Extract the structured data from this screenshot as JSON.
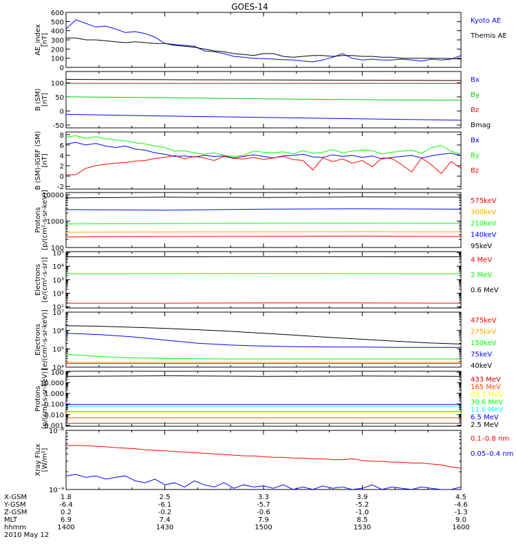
{
  "title": "GOES-14",
  "chart_data": [
    {
      "type": "line",
      "id": "ae",
      "ylabel": [
        "AE_index",
        "[nT]"
      ],
      "ylim": [
        0,
        600
      ],
      "scale": "linear",
      "ticks": [
        0,
        100,
        200,
        300,
        400,
        500,
        600
      ],
      "tick_labels": [
        "0",
        "100",
        "200",
        "300",
        "400",
        "500",
        "600"
      ],
      "x": [
        1400,
        1403,
        1406,
        1409,
        1412,
        1415,
        1418,
        1421,
        1424,
        1427,
        1430,
        1433,
        1436,
        1439,
        1442,
        1445,
        1448,
        1451,
        1454,
        1457,
        1500,
        1503,
        1506,
        1509,
        1512,
        1515,
        1518,
        1521,
        1524,
        1527,
        1530,
        1533,
        1536,
        1539,
        1542,
        1545,
        1548,
        1551,
        1554,
        1557,
        1600
      ],
      "series": [
        {
          "name": "Kyoto AE",
          "color": "#0000ff",
          "values": [
            420,
            520,
            480,
            440,
            450,
            420,
            380,
            390,
            370,
            330,
            260,
            250,
            240,
            230,
            180,
            170,
            150,
            120,
            110,
            100,
            95,
            90,
            85,
            80,
            70,
            60,
            80,
            110,
            150,
            100,
            80,
            90,
            80,
            80,
            90,
            80,
            70,
            90,
            80,
            90,
            130
          ]
        },
        {
          "name": "Themis AE",
          "color": "#000000",
          "values": [
            320,
            320,
            300,
            300,
            290,
            280,
            270,
            280,
            270,
            260,
            260,
            240,
            230,
            220,
            200,
            180,
            170,
            150,
            140,
            130,
            150,
            150,
            120,
            110,
            120,
            130,
            130,
            120,
            130,
            130,
            120,
            120,
            110,
            110,
            100,
            100,
            100,
            100,
            100,
            95,
            90
          ]
        }
      ]
    },
    {
      "type": "line",
      "id": "bsm",
      "ylabel": [
        "B (SM)",
        "[nT]"
      ],
      "ylim": [
        -60,
        140
      ],
      "scale": "linear",
      "ticks": [
        -50,
        0,
        50,
        100
      ],
      "tick_labels": [
        "-50",
        "0",
        "50",
        "100"
      ],
      "x": [
        1400,
        1430,
        1500,
        1530,
        1600
      ],
      "series": [
        {
          "name": "Bx",
          "color": "#0000ff",
          "values": [
            -12,
            -18,
            -23,
            -28,
            -33
          ]
        },
        {
          "name": "By",
          "color": "#00cc00",
          "values": [
            50,
            47,
            43,
            40,
            38
          ]
        },
        {
          "name": "Bz",
          "color": "#ff0000",
          "values": [
            98,
            98,
            98,
            98,
            98
          ]
        },
        {
          "name": "Bmag",
          "color": "#000000",
          "values": [
            112,
            111,
            110,
            109,
            108
          ]
        }
      ]
    },
    {
      "type": "line",
      "id": "bigrf",
      "ylabel": [
        "B (SM)-IGRF (SM)",
        "[nT]"
      ],
      "ylim": [
        -2.5,
        8.5
      ],
      "scale": "linear",
      "ticks": [
        -2,
        0,
        2,
        4,
        6,
        8
      ],
      "tick_labels": [
        "-2",
        "0",
        "2",
        "4",
        "6",
        "8"
      ],
      "x": [
        1400,
        1403,
        1406,
        1409,
        1412,
        1415,
        1418,
        1421,
        1424,
        1427,
        1430,
        1433,
        1436,
        1439,
        1442,
        1445,
        1448,
        1451,
        1454,
        1457,
        1500,
        1503,
        1506,
        1509,
        1512,
        1515,
        1518,
        1521,
        1524,
        1527,
        1530,
        1533,
        1536,
        1539,
        1542,
        1545,
        1548,
        1551,
        1554,
        1557,
        1600
      ],
      "series": [
        {
          "name": "Bx",
          "color": "#0000ff",
          "values": [
            6.2,
            6.5,
            6.0,
            6.3,
            5.8,
            5.5,
            5.8,
            5.2,
            5.0,
            4.5,
            4.2,
            3.8,
            3.9,
            3.7,
            4.0,
            3.8,
            3.9,
            3.5,
            3.8,
            4.1,
            3.8,
            3.5,
            3.9,
            4.0,
            4.2,
            3.7,
            3.6,
            4.1,
            3.8,
            4.0,
            3.6,
            3.9,
            3.3,
            3.6,
            3.8,
            4.0,
            3.5,
            3.9,
            4.2,
            4.4,
            4.0
          ]
        },
        {
          "name": "By",
          "color": "#00ff00",
          "values": [
            7.5,
            7.8,
            7.3,
            7.6,
            7.2,
            7.0,
            6.8,
            6.4,
            6.2,
            5.8,
            5.5,
            4.8,
            4.9,
            4.5,
            4.2,
            4.5,
            4.0,
            3.8,
            4.0,
            4.8,
            4.6,
            4.5,
            4.7,
            4.3,
            4.9,
            4.4,
            4.6,
            5.1,
            4.5,
            4.8,
            5.0,
            4.9,
            4.3,
            4.6,
            4.8,
            5.0,
            4.4,
            5.5,
            5.9,
            4.8,
            4.2
          ]
        },
        {
          "name": "Bz",
          "color": "#ff0000",
          "values": [
            0.2,
            0.3,
            1.5,
            2.0,
            2.3,
            2.5,
            2.6,
            2.9,
            3.0,
            3.4,
            3.6,
            4.0,
            3.3,
            3.8,
            3.5,
            3.0,
            3.8,
            3.4,
            3.3,
            3.6,
            3.2,
            3.5,
            3.8,
            3.2,
            3.0,
            1.2,
            3.5,
            2.8,
            3.3,
            2.5,
            3.0,
            1.8,
            3.5,
            3.4,
            2.2,
            0.8,
            3.5,
            2.2,
            0.5,
            2.8,
            1.5
          ]
        }
      ]
    },
    {
      "type": "line",
      "id": "protons1",
      "ylabel": [
        "Protons",
        "[p/(cm²-s-sr-keV)]"
      ],
      "ylim": [
        100,
        12000
      ],
      "scale": "log",
      "ticks": [
        100,
        1000,
        10000
      ],
      "tick_labels": [
        "100",
        "1000",
        "10000"
      ],
      "x": [
        1400,
        1430,
        1500,
        1530,
        1600
      ],
      "series": [
        {
          "name": "575keV",
          "color": "#ff0000",
          "values": [
            250,
            260,
            265,
            270,
            260
          ]
        },
        {
          "name": "300keV",
          "color": "#ffaa00",
          "values": [
            380,
            390,
            395,
            400,
            390
          ]
        },
        {
          "name": "210keV",
          "color": "#00ff00",
          "values": [
            780,
            800,
            820,
            830,
            810
          ]
        },
        {
          "name": "140keV",
          "color": "#0000ff",
          "values": [
            2700,
            2600,
            2800,
            2900,
            2800
          ]
        },
        {
          "name": "95keV",
          "color": "#000000",
          "values": [
            7500,
            8000,
            7800,
            8200,
            8000
          ]
        }
      ]
    },
    {
      "type": "line",
      "id": "electrons1",
      "ylabel": [
        "Electrons",
        "[e/(cm²-s-sr)]"
      ],
      "ylim": [
        8,
        120000
      ],
      "scale": "log",
      "ticks": [
        10,
        100,
        1000,
        10000,
        100000
      ],
      "tick_labels": [
        "10¹",
        "10²",
        "10³",
        "10⁴",
        "10⁵"
      ],
      "x": [
        1400,
        1430,
        1500,
        1530,
        1600
      ],
      "series": [
        {
          "name": "4 MeV",
          "color": "#ff0000",
          "values": [
            18,
            18,
            19,
            19,
            18
          ]
        },
        {
          "name": "2 MeV",
          "color": "#00ff00",
          "values": [
            2800,
            2850,
            2900,
            2850,
            2800
          ]
        },
        {
          "name": "0.6 MeV",
          "color": "#000000",
          "values": [
            50000,
            50000,
            51000,
            50500,
            50000
          ]
        }
      ]
    },
    {
      "type": "line",
      "id": "electrons2",
      "ylabel": [
        "Electrons",
        "[e/(cm²-s-sr-keV)]"
      ],
      "ylim": [
        10000,
        10000000
      ],
      "scale": "log",
      "ticks": [
        10000,
        100000,
        1000000,
        10000000
      ],
      "tick_labels": [
        "10⁴",
        "10⁵",
        "10⁶",
        "10⁷"
      ],
      "x": [
        1400,
        1410,
        1420,
        1430,
        1440,
        1450,
        1500,
        1510,
        1520,
        1530,
        1540,
        1550,
        1600
      ],
      "series": [
        {
          "name": "475keV",
          "color": "#ff0000",
          "values": [
            16000,
            16000,
            16000,
            16000,
            16000,
            16000,
            16000,
            16000,
            16000,
            16000,
            16000,
            16000,
            16000
          ]
        },
        {
          "name": "275keV",
          "color": "#ffaa00",
          "values": [
            18500,
            18500,
            18500,
            18500,
            18500,
            18500,
            18500,
            18500,
            18500,
            18500,
            18500,
            18500,
            18500
          ]
        },
        {
          "name": "150keV",
          "color": "#00ff00",
          "values": [
            50000,
            38000,
            32000,
            30000,
            29000,
            28000,
            28000,
            28000,
            28000,
            28000,
            28000,
            28000,
            28000
          ]
        },
        {
          "name": "75keV",
          "color": "#0000ff",
          "values": [
            700000,
            600000,
            450000,
            300000,
            200000,
            160000,
            140000,
            130000,
            125000,
            125000,
            120000,
            120000,
            120000
          ]
        },
        {
          "name": "40keV",
          "color": "#000000",
          "values": [
            1800000,
            1700000,
            1500000,
            1300000,
            1100000,
            900000,
            700000,
            550000,
            420000,
            330000,
            260000,
            210000,
            180000
          ]
        }
      ]
    },
    {
      "type": "line",
      "id": "protons2",
      "ylabel": [
        "Protons",
        "[p/(cm²-s-sr-keV)]"
      ],
      "ylim": [
        0.0008,
        120
      ],
      "scale": "log",
      "ticks": [
        0.001,
        0.01,
        0.1,
        1,
        10,
        100
      ],
      "tick_labels": [
        "0.001",
        "0.010",
        "0.100",
        "1.000",
        "10.000",
        "100"
      ],
      "x": [
        1400,
        1430,
        1500,
        1530,
        1600
      ],
      "series": [
        {
          "name": "433 MeV",
          "color": "#cc0000",
          "values": [
            0.0015,
            0.0015,
            0.0015,
            0.0015,
            0.0015
          ]
        },
        {
          "name": "165 MeV",
          "color": "#ff4400",
          "values": [
            0.005,
            0.005,
            0.005,
            0.005,
            0.005
          ]
        },
        {
          "name": "63.1 MeV",
          "color": "#ffff00",
          "values": [
            0.015,
            0.015,
            0.015,
            0.015,
            0.015
          ]
        },
        {
          "name": "30.6 MeV",
          "color": "#00ff00",
          "values": [
            0.02,
            0.02,
            0.02,
            0.02,
            0.02
          ]
        },
        {
          "name": "11.6 MeV",
          "color": "#00ffff",
          "values": [
            0.06,
            0.06,
            0.06,
            0.06,
            0.06
          ]
        },
        {
          "name": "6.5 MeV",
          "color": "#0000ff",
          "values": [
            0.09,
            0.09,
            0.09,
            0.09,
            0.09
          ]
        },
        {
          "name": "2.5 MeV",
          "color": "#000000",
          "values": [
            40,
            45,
            40,
            43,
            40
          ]
        }
      ]
    },
    {
      "type": "line",
      "id": "xray",
      "ylabel": [
        "Xray Flux",
        "[W/m²]"
      ],
      "ylim": [
        1e-09,
        1e-08
      ],
      "scale": "log",
      "ticks": [
        1e-09,
        1e-08
      ],
      "tick_labels": [
        "10⁻⁹",
        "10⁻⁸"
      ],
      "x": [
        1400,
        1403,
        1406,
        1409,
        1412,
        1415,
        1418,
        1421,
        1424,
        1427,
        1430,
        1433,
        1436,
        1439,
        1442,
        1445,
        1448,
        1451,
        1454,
        1457,
        1500,
        1503,
        1506,
        1509,
        1512,
        1515,
        1518,
        1521,
        1524,
        1527,
        1530,
        1533,
        1536,
        1539,
        1542,
        1545,
        1548,
        1551,
        1554,
        1557,
        1600
      ],
      "series": [
        {
          "name": "0.1–0.8 nm",
          "color": "#ff0000",
          "values": [
            5.5e-09,
            5.6e-09,
            5.5e-09,
            5.4e-09,
            5.3e-09,
            5.1e-09,
            5e-09,
            4.9e-09,
            4.7e-09,
            4.6e-09,
            4.5e-09,
            4.4e-09,
            4.3e-09,
            4.2e-09,
            4.1e-09,
            4e-09,
            3.9e-09,
            3.8e-09,
            3.7e-09,
            3.7e-09,
            3.6e-09,
            3.5e-09,
            3.5e-09,
            3.4e-09,
            3.4e-09,
            3.3e-09,
            3.3e-09,
            3.2e-09,
            3.2e-09,
            3.3e-09,
            3.1e-09,
            3e-09,
            3e-09,
            2.9e-09,
            2.9e-09,
            2.8e-09,
            2.8e-09,
            2.7e-09,
            2.6e-09,
            2.4e-09,
            2.3e-09
          ]
        },
        {
          "name": "0.05–0.4 nm",
          "color": "#0000ff",
          "values": [
            1.7e-09,
            1.8e-09,
            1.6e-09,
            1.7e-09,
            1.5e-09,
            1.6e-09,
            1.7e-09,
            1.4e-09,
            1.3e-09,
            1.5e-09,
            1.2e-09,
            1.3e-09,
            1.1e-09,
            1.4e-09,
            1.2e-09,
            1.1e-09,
            1.3e-09,
            1.05e-09,
            1.2e-09,
            1.1e-09,
            1.15e-09,
            1.05e-09,
            1.2e-09,
            1e-09,
            1.1e-09,
            1e-09,
            1.15e-09,
            1.05e-09,
            1.1e-09,
            1e-09,
            1.05e-09,
            1.2e-09,
            1e-09,
            1.1e-09,
            1.05e-09,
            1e-09,
            1.1e-09,
            1.05e-09,
            1e-09,
            1e-09,
            1.1e-09
          ]
        }
      ]
    }
  ],
  "x_axis": {
    "rows": [
      {
        "label": "X-GSM",
        "values": [
          "1.8",
          "2.5",
          "3.3",
          "3.9",
          "4.5"
        ]
      },
      {
        "label": "Y-GSM",
        "values": [
          "-6.4",
          "-6.1",
          "-5.7",
          "-5.2",
          "-4.6"
        ]
      },
      {
        "label": "Z-GSM",
        "values": [
          "0.2",
          "-0.2",
          "-0.6",
          "-1.0",
          "-1.3"
        ]
      },
      {
        "label": "MLT",
        "values": [
          "6.9",
          "7.4",
          "7.9",
          "8.5",
          "9.0"
        ]
      },
      {
        "label": "hhmm",
        "values": [
          "1400",
          "1430",
          "1500",
          "1530",
          "1600"
        ]
      }
    ],
    "date": "2010 May 12"
  }
}
